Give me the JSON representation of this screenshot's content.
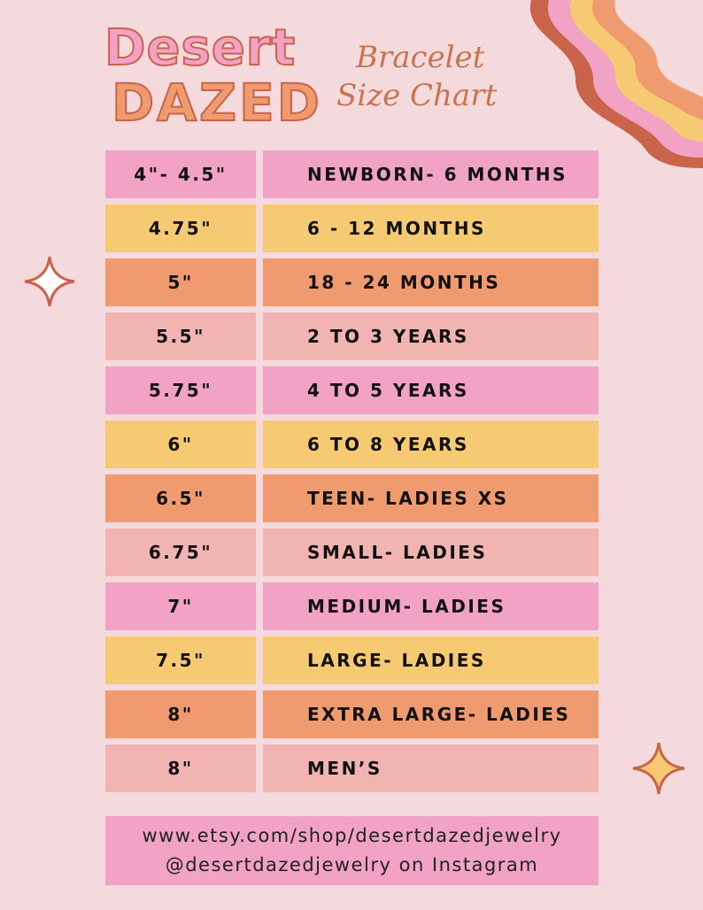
{
  "header": {
    "brand_top": "Desert",
    "brand_bottom": "DAZED",
    "title_line1": "Bracelet",
    "title_line2": "Size Chart"
  },
  "table": {
    "rows": [
      [
        "4\"- 4.5\"",
        "NEWBORN- 6 MONTHS"
      ],
      [
        "4.75\"",
        "6 - 12 MONTHS"
      ],
      [
        "5\"",
        "18 - 24 MONTHS"
      ],
      [
        "5.5\"",
        "2 TO 3 YEARS"
      ],
      [
        "5.75\"",
        "4 TO 5 YEARS"
      ],
      [
        "6\"",
        "6 TO 8 YEARS"
      ],
      [
        "6.5\"",
        "TEEN- LADIES XS"
      ],
      [
        "6.75\"",
        "SMALL- LADIES"
      ],
      [
        "7\"",
        "MEDIUM- LADIES"
      ],
      [
        "7.5\"",
        "LARGE- LADIES"
      ],
      [
        "8\"",
        "EXTRA LARGE- LADIES"
      ],
      [
        "8\"",
        "MEN’S"
      ]
    ]
  },
  "footer": {
    "line1": "www.etsy.com/shop/desertdazedjewelry",
    "line2": "@desertdazedjewelry on Instagram"
  }
}
